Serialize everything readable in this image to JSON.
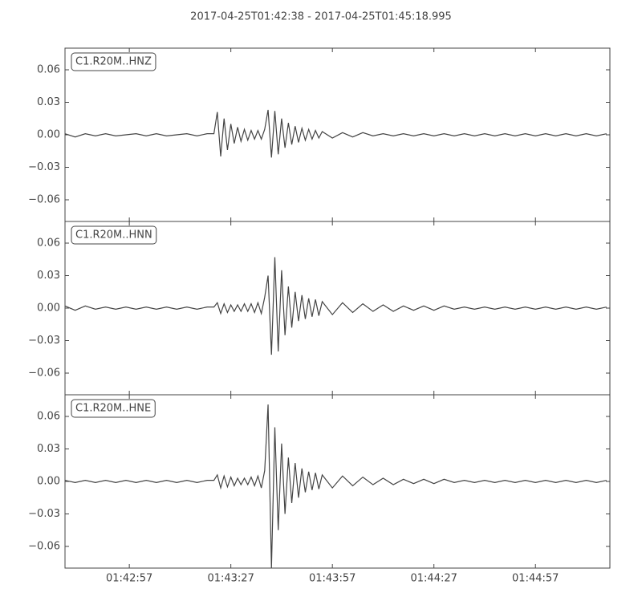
{
  "chart_data": [
    {
      "type": "line",
      "title": "2017-04-25T01:42:38  -  2017-04-25T01:45:18.995",
      "xlim": [
        0,
        160.995
      ],
      "ylim": [
        -0.08,
        0.08
      ],
      "yticks": [
        0.06,
        0.03,
        {
          "value": 0,
          "label": "0.00"
        },
        {
          "value": -0.03,
          "label": "−0.03"
        },
        {
          "value": -0.06,
          "label": "−0.06"
        }
      ],
      "x": [
        0,
        3,
        6,
        9,
        12,
        15,
        18,
        21,
        24,
        27,
        30,
        33,
        36,
        39,
        42,
        44,
        45,
        46,
        47,
        48,
        49,
        50,
        51,
        52,
        53,
        54,
        55,
        56,
        57,
        58,
        59,
        60,
        61,
        62,
        63,
        64,
        65,
        66,
        67,
        68,
        69,
        70,
        71,
        72,
        73,
        74,
        75,
        76,
        79,
        82,
        85,
        88,
        91,
        94,
        97,
        100,
        103,
        106,
        109,
        112,
        115,
        118,
        121,
        124,
        127,
        130,
        133,
        136,
        139,
        142,
        145,
        148,
        151,
        154,
        157,
        160
      ],
      "series": [
        {
          "name": "C1.R20M..HNZ",
          "color": "#444444",
          "values": [
            0.001,
            -0.002,
            0.001,
            -0.001,
            0.001,
            -0.001,
            0.0,
            0.001,
            -0.001,
            0.001,
            -0.001,
            0.0,
            0.001,
            -0.001,
            0.001,
            0.001,
            0.021,
            -0.02,
            0.015,
            -0.014,
            0.01,
            -0.008,
            0.007,
            -0.006,
            0.005,
            -0.005,
            0.004,
            -0.004,
            0.004,
            -0.004,
            0.005,
            0.023,
            -0.021,
            0.022,
            -0.018,
            0.015,
            -0.012,
            0.011,
            -0.009,
            0.008,
            -0.007,
            0.006,
            -0.005,
            0.005,
            -0.004,
            0.004,
            -0.003,
            0.003,
            -0.003,
            0.002,
            -0.002,
            0.002,
            -0.001,
            0.001,
            -0.001,
            0.001,
            -0.001,
            0.001,
            -0.001,
            0.001,
            -0.001,
            0.001,
            -0.001,
            0.001,
            -0.001,
            0.001,
            -0.001,
            0.001,
            -0.001,
            0.001,
            -0.001,
            0.001,
            -0.001,
            0.001,
            -0.001,
            0.001
          ]
        }
      ]
    },
    {
      "type": "line",
      "xlim": [
        0,
        160.995
      ],
      "ylim": [
        -0.08,
        0.08
      ],
      "yticks": [
        0.06,
        0.03,
        {
          "value": 0,
          "label": "0.00"
        },
        {
          "value": -0.03,
          "label": "−0.03"
        },
        {
          "value": -0.06,
          "label": "−0.06"
        }
      ],
      "x": [
        0,
        3,
        6,
        9,
        12,
        15,
        18,
        21,
        24,
        27,
        30,
        33,
        36,
        39,
        42,
        44,
        45,
        46,
        47,
        48,
        49,
        50,
        51,
        52,
        53,
        54,
        55,
        56,
        57,
        58,
        59,
        60,
        61,
        62,
        63,
        64,
        65,
        66,
        67,
        68,
        69,
        70,
        71,
        72,
        73,
        74,
        75,
        76,
        79,
        82,
        85,
        88,
        91,
        94,
        97,
        100,
        103,
        106,
        109,
        112,
        115,
        118,
        121,
        124,
        127,
        130,
        133,
        136,
        139,
        142,
        145,
        148,
        151,
        154,
        157,
        160
      ],
      "series": [
        {
          "name": "C1.R20M..HNN",
          "color": "#444444",
          "values": [
            0.002,
            -0.002,
            0.002,
            -0.001,
            0.001,
            -0.001,
            0.001,
            -0.001,
            0.001,
            -0.001,
            0.001,
            -0.001,
            0.001,
            -0.001,
            0.001,
            0.001,
            0.005,
            -0.005,
            0.004,
            -0.004,
            0.003,
            -0.003,
            0.003,
            -0.003,
            0.004,
            -0.003,
            0.004,
            -0.004,
            0.005,
            -0.005,
            0.01,
            0.03,
            -0.043,
            0.047,
            -0.04,
            0.035,
            -0.025,
            0.02,
            -0.018,
            0.015,
            -0.012,
            0.012,
            -0.01,
            0.009,
            -0.008,
            0.008,
            -0.007,
            0.006,
            -0.006,
            0.005,
            -0.004,
            0.004,
            -0.003,
            0.003,
            -0.003,
            0.002,
            -0.002,
            0.002,
            -0.002,
            0.002,
            -0.001,
            0.001,
            -0.001,
            0.001,
            -0.001,
            0.001,
            -0.001,
            0.001,
            -0.001,
            0.001,
            -0.001,
            0.001,
            -0.001,
            0.001,
            -0.001,
            0.001
          ]
        }
      ]
    },
    {
      "type": "line",
      "xlim": [
        0,
        160.995
      ],
      "ylim": [
        -0.08,
        0.08
      ],
      "yticks": [
        0.06,
        0.03,
        {
          "value": 0,
          "label": "0.00"
        },
        {
          "value": -0.03,
          "label": "−0.03"
        },
        {
          "value": -0.06,
          "label": "−0.06"
        }
      ],
      "xticks": [
        {
          "value": 19,
          "label": "01:42:57"
        },
        {
          "value": 49,
          "label": "01:43:27"
        },
        {
          "value": 79,
          "label": "01:43:57"
        },
        {
          "value": 109,
          "label": "01:44:27"
        },
        {
          "value": 139,
          "label": "01:44:57"
        }
      ],
      "x": [
        0,
        3,
        6,
        9,
        12,
        15,
        18,
        21,
        24,
        27,
        30,
        33,
        36,
        39,
        42,
        44,
        45,
        46,
        47,
        48,
        49,
        50,
        51,
        52,
        53,
        54,
        55,
        56,
        57,
        58,
        59,
        60,
        61,
        62,
        63,
        64,
        65,
        66,
        67,
        68,
        69,
        70,
        71,
        72,
        73,
        74,
        75,
        76,
        79,
        82,
        85,
        88,
        91,
        94,
        97,
        100,
        103,
        106,
        109,
        112,
        115,
        118,
        121,
        124,
        127,
        130,
        133,
        136,
        139,
        142,
        145,
        148,
        151,
        154,
        157,
        160
      ],
      "series": [
        {
          "name": "C1.R20M..HNE",
          "color": "#444444",
          "values": [
            0.001,
            -0.001,
            0.001,
            -0.001,
            0.001,
            -0.001,
            0.001,
            -0.001,
            0.001,
            -0.001,
            0.001,
            -0.001,
            0.001,
            -0.001,
            0.001,
            0.001,
            0.006,
            -0.006,
            0.005,
            -0.005,
            0.004,
            -0.004,
            0.003,
            -0.003,
            0.003,
            -0.003,
            0.004,
            -0.004,
            0.005,
            -0.006,
            0.01,
            0.071,
            -0.08,
            0.05,
            -0.045,
            0.035,
            -0.03,
            0.022,
            -0.02,
            0.017,
            -0.015,
            0.012,
            -0.01,
            0.009,
            -0.008,
            0.008,
            -0.007,
            0.006,
            -0.006,
            0.005,
            -0.004,
            0.004,
            -0.003,
            0.003,
            -0.003,
            0.002,
            -0.002,
            0.002,
            -0.002,
            0.002,
            -0.001,
            0.001,
            -0.001,
            0.001,
            -0.001,
            0.001,
            -0.001,
            0.001,
            -0.001,
            0.001,
            -0.001,
            0.001,
            -0.001,
            0.001,
            -0.001,
            0.001
          ]
        }
      ]
    }
  ]
}
